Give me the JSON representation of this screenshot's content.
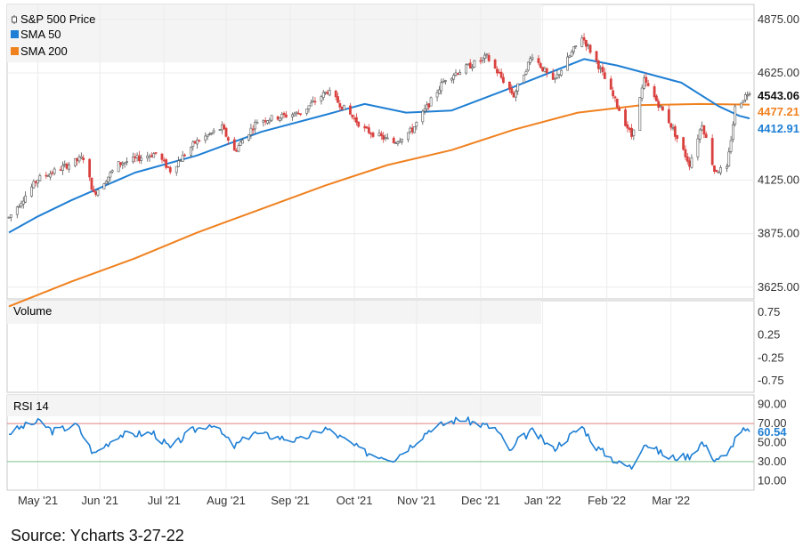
{
  "chart_data": {
    "type": "candlestick",
    "title": "",
    "legend": [
      {
        "name": "S&P 500 Price",
        "color": "#555555",
        "icon": "candlestick-icon"
      },
      {
        "name": "SMA 50",
        "color": "#1f7fd4",
        "icon": "square-icon"
      },
      {
        "name": "SMA 200",
        "color": "#f0811f",
        "icon": "square-icon"
      }
    ],
    "legend_position": "top-left",
    "x_ticks": [
      "May '21",
      "Jun '21",
      "Jul '21",
      "Aug '21",
      "Sep '21",
      "Oct '21",
      "Nov '21",
      "Dec '21",
      "Jan '22",
      "Feb '22",
      "Mar '22"
    ],
    "price_ticks": [
      "4875.00",
      "4625.00",
      "4125.00",
      "3875.00",
      "3625.00"
    ],
    "price_ylim": [
      3570,
      4945
    ],
    "price_keyframes": [
      [
        "2021-04-01",
        3950
      ],
      [
        "2021-04-15",
        4130
      ],
      [
        "2021-05-07",
        4230
      ],
      [
        "2021-05-12",
        4060
      ],
      [
        "2021-05-24",
        4200
      ],
      [
        "2021-06-11",
        4250
      ],
      [
        "2021-06-18",
        4170
      ],
      [
        "2021-06-30",
        4300
      ],
      [
        "2021-07-13",
        4370
      ],
      [
        "2021-07-19",
        4260
      ],
      [
        "2021-07-30",
        4400
      ],
      [
        "2021-08-20",
        4440
      ],
      [
        "2021-09-02",
        4540
      ],
      [
        "2021-09-20",
        4360
      ],
      [
        "2021-10-04",
        4300
      ],
      [
        "2021-10-13",
        4360
      ],
      [
        "2021-10-29",
        4600
      ],
      [
        "2021-11-18",
        4700
      ],
      [
        "2021-11-26",
        4590
      ],
      [
        "2021-12-01",
        4520
      ],
      [
        "2021-12-10",
        4710
      ],
      [
        "2021-12-20",
        4580
      ],
      [
        "2022-01-03",
        4795
      ],
      [
        "2022-01-10",
        4680
      ],
      [
        "2022-01-27",
        4330
      ],
      [
        "2022-02-02",
        4590
      ],
      [
        "2022-02-14",
        4400
      ],
      [
        "2022-02-24",
        4200
      ],
      [
        "2022-03-02",
        4390
      ],
      [
        "2022-03-08",
        4170
      ],
      [
        "2022-03-14",
        4175
      ],
      [
        "2022-03-18",
        4460
      ],
      [
        "2022-03-25",
        4543
      ]
    ],
    "sma50_keyframes": [
      [
        "2021-04-01",
        3880
      ],
      [
        "2021-04-15",
        3955
      ],
      [
        "2021-05-01",
        4030
      ],
      [
        "2021-06-01",
        4160
      ],
      [
        "2021-07-01",
        4240
      ],
      [
        "2021-08-01",
        4350
      ],
      [
        "2021-09-01",
        4430
      ],
      [
        "2021-09-20",
        4480
      ],
      [
        "2021-10-10",
        4440
      ],
      [
        "2021-11-01",
        4450
      ],
      [
        "2021-12-01",
        4560
      ],
      [
        "2022-01-04",
        4690
      ],
      [
        "2022-01-20",
        4660
      ],
      [
        "2022-02-20",
        4580
      ],
      [
        "2022-03-10",
        4470
      ],
      [
        "2022-03-20",
        4425
      ],
      [
        "2022-03-25",
        4412.91
      ]
    ],
    "sma200_keyframes": [
      [
        "2021-04-01",
        3535
      ],
      [
        "2021-05-01",
        3650
      ],
      [
        "2021-06-01",
        3760
      ],
      [
        "2021-07-01",
        3880
      ],
      [
        "2021-08-01",
        3990
      ],
      [
        "2021-09-01",
        4100
      ],
      [
        "2021-10-01",
        4195
      ],
      [
        "2021-11-01",
        4265
      ],
      [
        "2021-12-01",
        4360
      ],
      [
        "2022-01-01",
        4440
      ],
      [
        "2022-02-01",
        4475
      ],
      [
        "2022-03-01",
        4480
      ],
      [
        "2022-03-25",
        4477.21
      ]
    ],
    "last_values": {
      "price": "4543.06",
      "sma200": "4477.21",
      "sma50": "4412.91"
    },
    "volume": {
      "label": "Volume",
      "ticks": [
        "0.75",
        "0.25",
        "-0.25",
        "-0.75"
      ],
      "ylim": [
        -1,
        1
      ]
    },
    "rsi": {
      "label": "RSI 14",
      "ticks": [
        "90.00",
        "70.00",
        "50.00",
        "30.00",
        "10.00"
      ],
      "ylim": [
        0,
        100
      ],
      "overbought": 70,
      "oversold": 30,
      "last_value": "60.54",
      "keyframes": [
        [
          "2021-04-01",
          60
        ],
        [
          "2021-04-08",
          67
        ],
        [
          "2021-04-16",
          72
        ],
        [
          "2021-04-22",
          62
        ],
        [
          "2021-05-04",
          68
        ],
        [
          "2021-05-12",
          38
        ],
        [
          "2021-05-24",
          58
        ],
        [
          "2021-06-10",
          60
        ],
        [
          "2021-06-18",
          44
        ],
        [
          "2021-06-28",
          62
        ],
        [
          "2021-07-08",
          70
        ],
        [
          "2021-07-19",
          46
        ],
        [
          "2021-07-28",
          60
        ],
        [
          "2021-08-19",
          52
        ],
        [
          "2021-09-01",
          65
        ],
        [
          "2021-09-20",
          40
        ],
        [
          "2021-10-04",
          33
        ],
        [
          "2021-10-13",
          48
        ],
        [
          "2021-10-22",
          65
        ],
        [
          "2021-11-05",
          75
        ],
        [
          "2021-11-22",
          65
        ],
        [
          "2021-11-30",
          40
        ],
        [
          "2021-12-03",
          52
        ],
        [
          "2021-12-10",
          62
        ],
        [
          "2021-12-20",
          43
        ],
        [
          "2022-01-03",
          67
        ],
        [
          "2022-01-10",
          45
        ],
        [
          "2022-01-21",
          28
        ],
        [
          "2022-01-27",
          24
        ],
        [
          "2022-02-02",
          50
        ],
        [
          "2022-02-14",
          34
        ],
        [
          "2022-02-24",
          36
        ],
        [
          "2022-03-02",
          50
        ],
        [
          "2022-03-08",
          33
        ],
        [
          "2022-03-14",
          35
        ],
        [
          "2022-03-20",
          64
        ],
        [
          "2022-03-25",
          60.54
        ]
      ]
    }
  },
  "source_text": "Source: Ycharts 3-27-22"
}
